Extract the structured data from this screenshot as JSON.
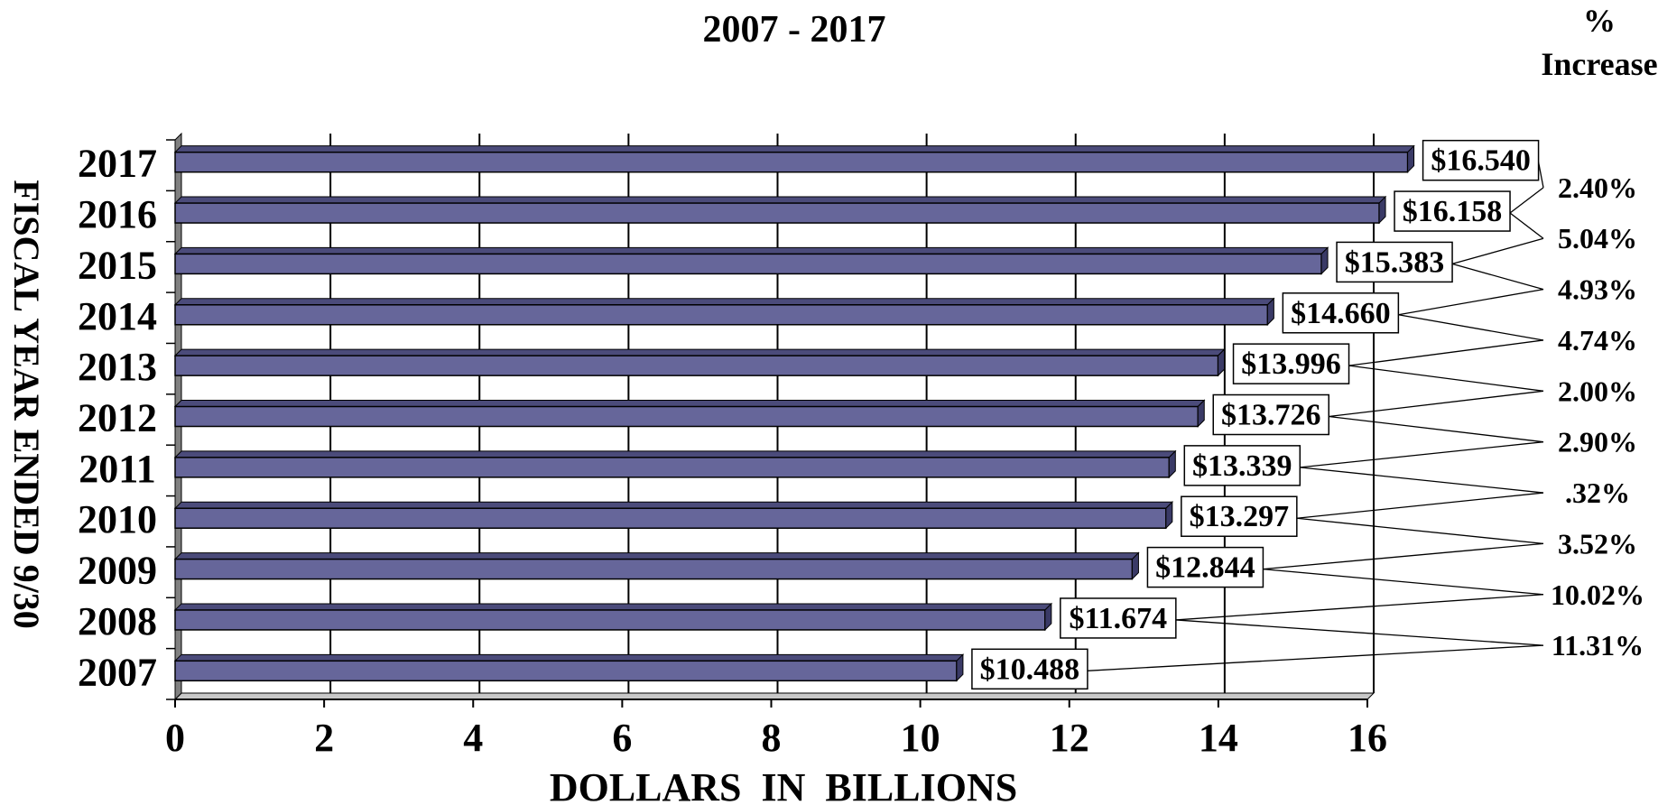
{
  "chart_data": {
    "type": "bar",
    "orientation": "horizontal",
    "title": "2007 - 2017",
    "xlabel": "DOLLARS  IN  BILLIONS",
    "ylabel": "FISCAL YEAR ENDED 9/30",
    "xlim": [
      0,
      16
    ],
    "xticks": [
      "0",
      "2",
      "4",
      "6",
      "8",
      "10",
      "12",
      "14",
      "16"
    ],
    "categories": [
      "2017",
      "2016",
      "2015",
      "2014",
      "2013",
      "2012",
      "2011",
      "2010",
      "2009",
      "2008",
      "2007"
    ],
    "values": [
      16.54,
      16.158,
      15.383,
      14.66,
      13.996,
      13.726,
      13.339,
      13.297,
      12.844,
      11.674,
      10.488
    ],
    "value_labels": [
      "$16.540",
      "$16.158",
      "$15.383",
      "$14.660",
      "$13.996",
      "$13.726",
      "$13.339",
      "$13.297",
      "$12.844",
      "$11.674",
      "$10.488"
    ],
    "increase_header": [
      "%",
      "Increase"
    ],
    "increase_labels": [
      "2.40%",
      "5.04%",
      "4.93%",
      "4.74%",
      "2.00%",
      "2.90%",
      ".32%",
      "3.52%",
      "10.02%",
      "11.31%"
    ],
    "grid": true,
    "bar_color": "#66669a"
  }
}
